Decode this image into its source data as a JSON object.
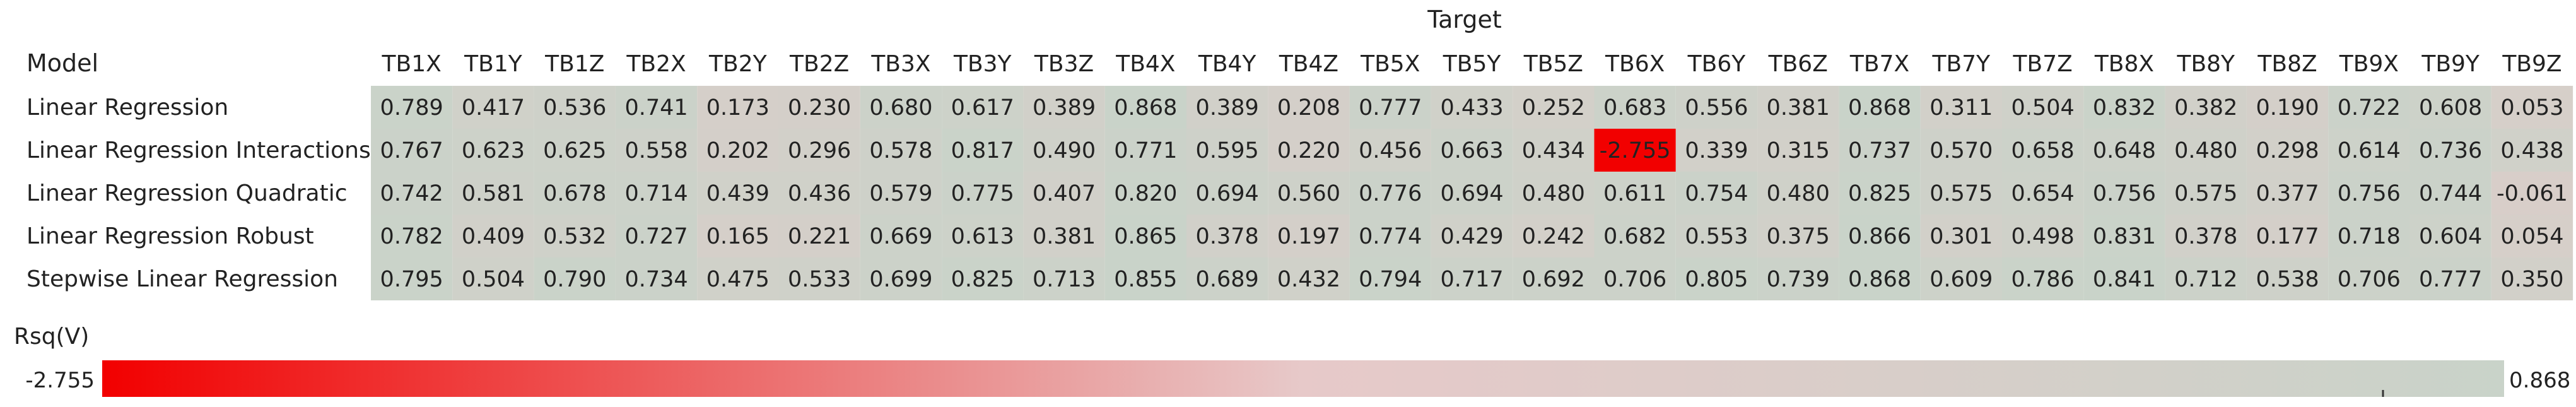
{
  "chart_data": {
    "type": "heatmap",
    "column_header": "Target",
    "row_header": "Model",
    "columns": [
      "TB1X",
      "TB1Y",
      "TB1Z",
      "TB2X",
      "TB2Y",
      "TB2Z",
      "TB3X",
      "TB3Y",
      "TB3Z",
      "TB4X",
      "TB4Y",
      "TB4Z",
      "TB5X",
      "TB5Y",
      "TB5Z",
      "TB6X",
      "TB6Y",
      "TB6Z",
      "TB7X",
      "TB7Y",
      "TB7Z",
      "TB8X",
      "TB8Y",
      "TB8Z",
      "TB9X",
      "TB9Y",
      "TB9Z"
    ],
    "rows": [
      "Linear Regression",
      "Linear Regression Interactions",
      "Linear Regression Quadratic",
      "Linear Regression Robust",
      "Stepwise Linear Regression"
    ],
    "values": [
      [
        0.789,
        0.417,
        0.536,
        0.741,
        0.173,
        0.23,
        0.68,
        0.617,
        0.389,
        0.868,
        0.389,
        0.208,
        0.777,
        0.433,
        0.252,
        0.683,
        0.556,
        0.381,
        0.868,
        0.311,
        0.504,
        0.832,
        0.382,
        0.19,
        0.722,
        0.608,
        0.053
      ],
      [
        0.767,
        0.623,
        0.625,
        0.558,
        0.202,
        0.296,
        0.578,
        0.817,
        0.49,
        0.771,
        0.595,
        0.22,
        0.456,
        0.663,
        0.434,
        -2.755,
        0.339,
        0.315,
        0.737,
        0.57,
        0.658,
        0.648,
        0.48,
        0.298,
        0.614,
        0.736,
        0.438
      ],
      [
        0.742,
        0.581,
        0.678,
        0.714,
        0.439,
        0.436,
        0.579,
        0.775,
        0.407,
        0.82,
        0.694,
        0.56,
        0.776,
        0.694,
        0.48,
        0.611,
        0.754,
        0.48,
        0.825,
        0.575,
        0.654,
        0.756,
        0.575,
        0.377,
        0.756,
        0.744,
        -0.061
      ],
      [
        0.782,
        0.409,
        0.532,
        0.727,
        0.165,
        0.221,
        0.669,
        0.613,
        0.381,
        0.865,
        0.378,
        0.197,
        0.774,
        0.429,
        0.242,
        0.682,
        0.553,
        0.375,
        0.866,
        0.301,
        0.498,
        0.831,
        0.378,
        0.177,
        0.718,
        0.604,
        0.054
      ],
      [
        0.795,
        0.504,
        0.79,
        0.734,
        0.475,
        0.533,
        0.699,
        0.825,
        0.713,
        0.855,
        0.689,
        0.432,
        0.794,
        0.717,
        0.692,
        0.706,
        0.805,
        0.739,
        0.868,
        0.609,
        0.786,
        0.841,
        0.712,
        0.538,
        0.706,
        0.777,
        0.35
      ]
    ],
    "legend": {
      "title": "Rsq(V)",
      "min_label": "-2.755",
      "max_label": "0.868",
      "min": -2.755,
      "max": 0.868,
      "color_low": "#f20000",
      "color_high": "#c9d3c9"
    }
  }
}
